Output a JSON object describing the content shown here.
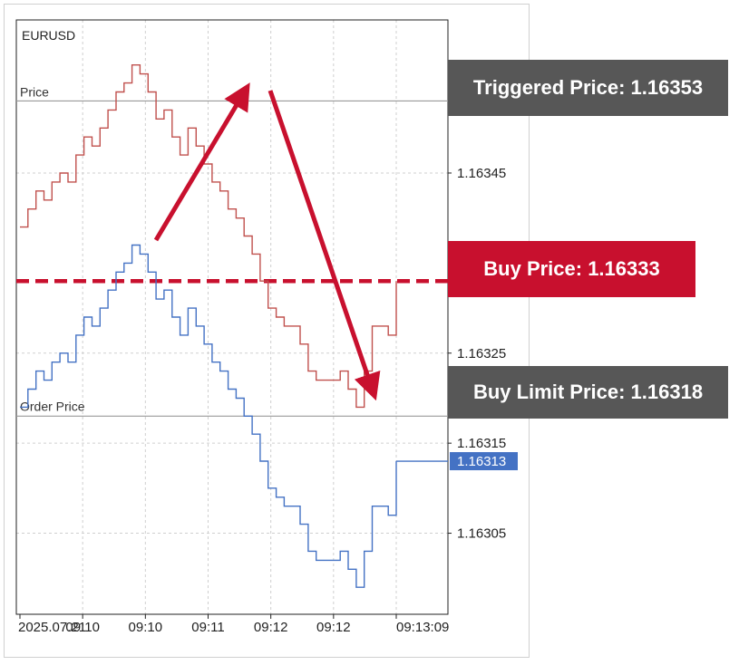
{
  "chart_data": {
    "type": "line",
    "symbol": "EURUSD",
    "ylim": [
      1.16296,
      1.16362
    ],
    "y_ticks": [
      "1.16345",
      "1.16325",
      "1.16315",
      "1.16305"
    ],
    "x_tick_labels": [
      "2025.07.21",
      "09:10",
      "09:10",
      "09:11",
      "09:12",
      "09:12",
      "09:13:09"
    ],
    "series": [
      {
        "name": "Price",
        "color": "#c0504d",
        "values": [
          1.16339,
          1.16341,
          1.16343,
          1.16342,
          1.16344,
          1.16345,
          1.16344,
          1.16347,
          1.16349,
          1.16348,
          1.1635,
          1.16352,
          1.16354,
          1.16355,
          1.16357,
          1.16356,
          1.16354,
          1.16351,
          1.16352,
          1.16349,
          1.16347,
          1.1635,
          1.16348,
          1.16346,
          1.16344,
          1.16343,
          1.16341,
          1.1634,
          1.16338,
          1.16336,
          1.16333,
          1.1633,
          1.16329,
          1.16328,
          1.16328,
          1.16326,
          1.16323,
          1.16322,
          1.16322,
          1.16322,
          1.16323,
          1.16321,
          1.16319,
          1.16323,
          1.16328,
          1.16328,
          1.16327,
          1.16333
        ]
      },
      {
        "name": "Order Price",
        "color": "#4472c4",
        "values": [
          1.16319,
          1.16321,
          1.16323,
          1.16322,
          1.16324,
          1.16325,
          1.16324,
          1.16327,
          1.16329,
          1.16328,
          1.1633,
          1.16332,
          1.16334,
          1.16335,
          1.16337,
          1.16336,
          1.16334,
          1.16331,
          1.16332,
          1.16329,
          1.16327,
          1.1633,
          1.16328,
          1.16326,
          1.16324,
          1.16323,
          1.16321,
          1.1632,
          1.16318,
          1.16316,
          1.16313,
          1.1631,
          1.16309,
          1.16308,
          1.16308,
          1.16306,
          1.16303,
          1.16302,
          1.16302,
          1.16302,
          1.16303,
          1.16301,
          1.16299,
          1.16303,
          1.16308,
          1.16308,
          1.16307,
          1.16313
        ]
      }
    ],
    "levels": {
      "triggered_line": 1.16353,
      "buy_line": 1.16333,
      "order_line": 1.16318
    },
    "last_price_label": "1.16313",
    "line_labels": {
      "price": "Price",
      "order_price": "Order Price"
    }
  },
  "callouts": {
    "triggered": "Triggered Price: 1.16353",
    "buy": "Buy Price: 1.16333",
    "buy_limit": "Buy Limit Price: 1.16318"
  },
  "colors": {
    "accent_red": "#c8102e",
    "callout_gray": "#575757",
    "order_blue": "#4472c4"
  }
}
